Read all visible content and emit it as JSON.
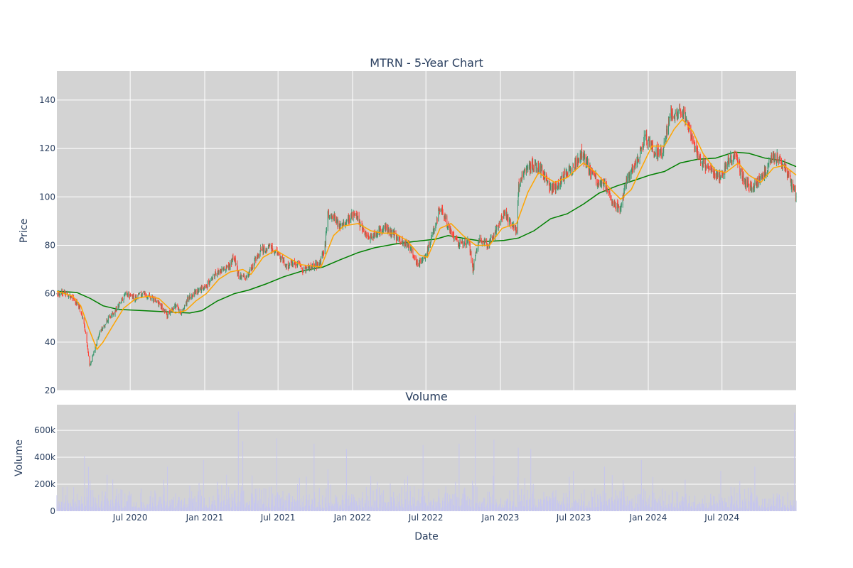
{
  "chart_data": [
    {
      "type": "candlestick",
      "title": "MTRN - 5-Year Chart",
      "ylabel": "Price",
      "ylim": [
        20,
        152
      ],
      "yticks": [
        20,
        40,
        60,
        80,
        100,
        120,
        140
      ],
      "xlim": [
        "2020-01-02",
        "2024-12-31"
      ],
      "xticks": [
        "2020-07-01",
        "2021-01-01",
        "2021-07-01",
        "2022-01-01",
        "2022-07-01",
        "2023-01-01",
        "2023-07-01",
        "2024-01-01",
        "2024-07-01"
      ],
      "xtick_labels": [
        "Jul 2020",
        "Jan 2021",
        "Jul 2021",
        "Jan 2022",
        "Jul 2022",
        "Jan 2023",
        "Jul 2023",
        "Jan 2024",
        "Jul 2024"
      ],
      "grid": true,
      "legend": "none",
      "colors": {
        "up": "#3d9970",
        "down": "#ff4136",
        "ma_short": "#ffa500",
        "ma_long": "#008000",
        "plot_bg": "#d3d3d3"
      },
      "approx_close_path": [
        [
          "2020-01-02",
          60
        ],
        [
          "2020-01-20",
          61
        ],
        [
          "2020-02-10",
          58
        ],
        [
          "2020-02-25",
          55
        ],
        [
          "2020-03-05",
          50
        ],
        [
          "2020-03-12",
          45
        ],
        [
          "2020-03-23",
          30
        ],
        [
          "2020-04-01",
          35
        ],
        [
          "2020-04-15",
          43
        ],
        [
          "2020-05-01",
          48
        ],
        [
          "2020-05-20",
          52
        ],
        [
          "2020-06-05",
          56
        ],
        [
          "2020-06-20",
          60
        ],
        [
          "2020-07-10",
          58
        ],
        [
          "2020-08-01",
          60
        ],
        [
          "2020-08-25",
          58
        ],
        [
          "2020-09-15",
          55
        ],
        [
          "2020-10-01",
          51
        ],
        [
          "2020-10-20",
          55
        ],
        [
          "2020-11-05",
          52
        ],
        [
          "2020-11-20",
          58
        ],
        [
          "2020-12-10",
          61
        ],
        [
          "2021-01-05",
          63
        ],
        [
          "2021-01-25",
          68
        ],
        [
          "2021-02-15",
          70
        ],
        [
          "2021-03-01",
          71
        ],
        [
          "2021-03-15",
          75
        ],
        [
          "2021-03-25",
          68
        ],
        [
          "2021-04-15",
          67
        ],
        [
          "2021-05-01",
          72
        ],
        [
          "2021-05-20",
          78
        ],
        [
          "2021-06-10",
          79
        ],
        [
          "2021-07-01",
          77
        ],
        [
          "2021-07-20",
          71
        ],
        [
          "2021-08-10",
          73
        ],
        [
          "2021-09-01",
          70
        ],
        [
          "2021-09-20",
          71
        ],
        [
          "2021-10-10",
          72
        ],
        [
          "2021-10-25",
          79
        ],
        [
          "2021-11-01",
          93
        ],
        [
          "2021-11-15",
          92
        ],
        [
          "2021-12-01",
          87
        ],
        [
          "2021-12-20",
          90
        ],
        [
          "2022-01-05",
          94
        ],
        [
          "2022-01-25",
          87
        ],
        [
          "2022-02-10",
          83
        ],
        [
          "2022-03-01",
          85
        ],
        [
          "2022-03-20",
          87
        ],
        [
          "2022-04-10",
          85
        ],
        [
          "2022-05-01",
          82
        ],
        [
          "2022-05-20",
          80
        ],
        [
          "2022-06-10",
          72
        ],
        [
          "2022-06-25",
          74
        ],
        [
          "2022-07-10",
          80
        ],
        [
          "2022-07-25",
          89
        ],
        [
          "2022-08-05",
          96
        ],
        [
          "2022-08-20",
          90
        ],
        [
          "2022-09-05",
          83
        ],
        [
          "2022-09-25",
          80
        ],
        [
          "2022-10-15",
          82
        ],
        [
          "2022-10-25",
          70
        ],
        [
          "2022-11-10",
          83
        ],
        [
          "2022-12-01",
          80
        ],
        [
          "2022-12-20",
          86
        ],
        [
          "2023-01-10",
          93
        ],
        [
          "2023-01-25",
          90
        ],
        [
          "2023-02-10",
          86
        ],
        [
          "2023-02-15",
          105
        ],
        [
          "2023-03-01",
          110
        ],
        [
          "2023-03-20",
          113
        ],
        [
          "2023-04-10",
          112
        ],
        [
          "2023-05-01",
          104
        ],
        [
          "2023-05-20",
          103
        ],
        [
          "2023-06-10",
          110
        ],
        [
          "2023-07-01",
          112
        ],
        [
          "2023-07-20",
          118
        ],
        [
          "2023-08-10",
          111
        ],
        [
          "2023-08-25",
          107
        ],
        [
          "2023-09-15",
          105
        ],
        [
          "2023-10-05",
          98
        ],
        [
          "2023-10-25",
          95
        ],
        [
          "2023-11-10",
          108
        ],
        [
          "2023-12-05",
          115
        ],
        [
          "2023-12-25",
          125
        ],
        [
          "2024-01-15",
          119
        ],
        [
          "2024-02-05",
          118
        ],
        [
          "2024-02-25",
          135
        ],
        [
          "2024-03-10",
          133
        ],
        [
          "2024-03-25",
          136
        ],
        [
          "2024-04-15",
          127
        ],
        [
          "2024-05-01",
          118
        ],
        [
          "2024-05-20",
          113
        ],
        [
          "2024-06-10",
          110
        ],
        [
          "2024-06-25",
          108
        ],
        [
          "2024-07-15",
          115
        ],
        [
          "2024-08-05",
          117
        ],
        [
          "2024-08-25",
          106
        ],
        [
          "2024-09-15",
          104
        ],
        [
          "2024-10-10",
          108
        ],
        [
          "2024-11-01",
          117
        ],
        [
          "2024-11-20",
          116
        ],
        [
          "2024-12-10",
          110
        ],
        [
          "2024-12-31",
          100
        ]
      ],
      "approx_ma_short": [
        [
          "2020-01-02",
          61
        ],
        [
          "2020-02-10",
          59
        ],
        [
          "2020-03-01",
          55
        ],
        [
          "2020-03-20",
          46
        ],
        [
          "2020-04-10",
          37
        ],
        [
          "2020-04-25",
          40
        ],
        [
          "2020-05-20",
          47
        ],
        [
          "2020-06-15",
          54
        ],
        [
          "2020-07-15",
          58
        ],
        [
          "2020-08-15",
          59
        ],
        [
          "2020-09-10",
          58
        ],
        [
          "2020-10-05",
          54
        ],
        [
          "2020-10-20",
          52
        ],
        [
          "2020-11-15",
          53
        ],
        [
          "2020-12-10",
          57
        ],
        [
          "2021-01-05",
          60
        ],
        [
          "2021-02-05",
          66
        ],
        [
          "2021-03-05",
          69
        ],
        [
          "2021-04-05",
          70
        ],
        [
          "2021-04-25",
          68
        ],
        [
          "2021-05-25",
          75
        ],
        [
          "2021-06-25",
          78
        ],
        [
          "2021-07-25",
          75
        ],
        [
          "2021-08-25",
          72
        ],
        [
          "2021-10-15",
          71
        ],
        [
          "2021-11-15",
          84
        ],
        [
          "2021-12-10",
          88
        ],
        [
          "2022-01-15",
          89
        ],
        [
          "2022-02-15",
          86
        ],
        [
          "2022-03-15",
          85
        ],
        [
          "2022-04-15",
          85
        ],
        [
          "2022-05-15",
          82
        ],
        [
          "2022-06-15",
          76
        ],
        [
          "2022-07-05",
          75
        ],
        [
          "2022-08-05",
          87
        ],
        [
          "2022-09-01",
          89
        ],
        [
          "2022-10-01",
          84
        ],
        [
          "2022-11-01",
          80
        ],
        [
          "2022-12-05",
          80
        ],
        [
          "2023-01-05",
          87
        ],
        [
          "2023-02-10",
          89
        ],
        [
          "2023-03-10",
          102
        ],
        [
          "2023-04-05",
          110
        ],
        [
          "2023-05-15",
          106
        ],
        [
          "2023-06-15",
          108
        ],
        [
          "2023-07-25",
          114
        ],
        [
          "2023-08-25",
          110
        ],
        [
          "2023-09-25",
          104
        ],
        [
          "2023-10-25",
          99
        ],
        [
          "2023-11-20",
          103
        ],
        [
          "2023-12-15",
          112
        ],
        [
          "2024-01-10",
          121
        ],
        [
          "2024-02-10",
          121
        ],
        [
          "2024-03-05",
          128
        ],
        [
          "2024-03-25",
          132
        ],
        [
          "2024-04-20",
          127
        ],
        [
          "2024-05-15",
          118
        ],
        [
          "2024-06-15",
          111
        ],
        [
          "2024-07-10",
          110
        ],
        [
          "2024-08-10",
          114
        ],
        [
          "2024-09-05",
          109
        ],
        [
          "2024-10-05",
          106
        ],
        [
          "2024-11-05",
          112
        ],
        [
          "2024-12-01",
          113
        ],
        [
          "2024-12-31",
          109
        ]
      ],
      "approx_ma_long": [
        [
          "2020-01-02",
          61
        ],
        [
          "2020-02-20",
          60.5
        ],
        [
          "2020-03-25",
          58
        ],
        [
          "2020-04-25",
          55
        ],
        [
          "2020-06-01",
          53.5
        ],
        [
          "2020-08-01",
          53
        ],
        [
          "2020-10-01",
          52.5
        ],
        [
          "2020-11-25",
          52
        ],
        [
          "2020-12-25",
          53
        ],
        [
          "2021-02-01",
          57
        ],
        [
          "2021-03-15",
          60
        ],
        [
          "2021-04-20",
          61.5
        ],
        [
          "2021-06-01",
          64
        ],
        [
          "2021-07-15",
          67
        ],
        [
          "2021-09-01",
          69.5
        ],
        [
          "2021-10-20",
          71
        ],
        [
          "2021-12-01",
          74
        ],
        [
          "2022-01-15",
          77
        ],
        [
          "2022-02-25",
          79
        ],
        [
          "2022-04-15",
          80.5
        ],
        [
          "2022-06-01",
          81.5
        ],
        [
          "2022-07-25",
          82.5
        ],
        [
          "2022-08-25",
          84
        ],
        [
          "2022-10-15",
          82.5
        ],
        [
          "2022-11-25",
          81.5
        ],
        [
          "2023-01-10",
          82
        ],
        [
          "2023-02-15",
          83
        ],
        [
          "2023-03-25",
          86
        ],
        [
          "2023-05-05",
          91
        ],
        [
          "2023-06-15",
          93
        ],
        [
          "2023-07-25",
          97
        ],
        [
          "2023-09-01",
          101.5
        ],
        [
          "2023-10-15",
          104.5
        ],
        [
          "2023-12-01",
          107
        ],
        [
          "2024-01-05",
          109
        ],
        [
          "2024-02-10",
          110.5
        ],
        [
          "2024-03-20",
          114
        ],
        [
          "2024-05-01",
          115.5
        ],
        [
          "2024-06-15",
          116
        ],
        [
          "2024-08-01",
          118.5
        ],
        [
          "2024-09-05",
          118
        ],
        [
          "2024-10-15",
          116
        ],
        [
          "2024-11-25",
          115
        ],
        [
          "2024-12-31",
          112.5
        ]
      ]
    },
    {
      "type": "bar",
      "title": "Volume",
      "xlabel": "Date",
      "ylabel": "Volume",
      "ylim": [
        0,
        790000
      ],
      "yticks": [
        0,
        200000,
        400000,
        600000
      ],
      "ytick_labels": [
        "0",
        "200k",
        "400k",
        "600k"
      ],
      "xticks": [
        "2020-07-01",
        "2021-01-01",
        "2021-07-01",
        "2022-01-01",
        "2022-07-01",
        "2023-01-01",
        "2023-07-01",
        "2024-01-01",
        "2024-07-01"
      ],
      "xtick_labels": [
        "Jul 2020",
        "Jan 2021",
        "Jul 2021",
        "Jan 2022",
        "Jul 2022",
        "Jan 2023",
        "Jul 2023",
        "Jan 2024",
        "Jul 2024"
      ],
      "grid": true,
      "colors": {
        "bar": "#c6c6ee",
        "plot_bg": "#d3d3d3"
      },
      "baseline_volume_range": [
        20000,
        150000
      ],
      "volume_spikes": [
        [
          "2020-03-10",
          410000
        ],
        [
          "2020-03-20",
          330000
        ],
        [
          "2020-05-05",
          270000
        ],
        [
          "2020-06-20",
          350000
        ],
        [
          "2020-10-01",
          330000
        ],
        [
          "2020-12-29",
          380000
        ],
        [
          "2021-03-25",
          740000
        ],
        [
          "2021-04-05",
          520000
        ],
        [
          "2021-06-28",
          540000
        ],
        [
          "2021-09-28",
          500000
        ],
        [
          "2021-11-01",
          310000
        ],
        [
          "2021-12-17",
          460000
        ],
        [
          "2022-06-24",
          490000
        ],
        [
          "2022-09-21",
          500000
        ],
        [
          "2022-10-31",
          710000
        ],
        [
          "2022-12-16",
          530000
        ],
        [
          "2023-02-14",
          470000
        ],
        [
          "2023-03-17",
          460000
        ],
        [
          "2023-06-30",
          300000
        ],
        [
          "2023-09-15",
          330000
        ],
        [
          "2023-12-15",
          380000
        ],
        [
          "2024-06-28",
          300000
        ],
        [
          "2024-09-20",
          330000
        ],
        [
          "2024-12-27",
          730000
        ]
      ]
    }
  ]
}
